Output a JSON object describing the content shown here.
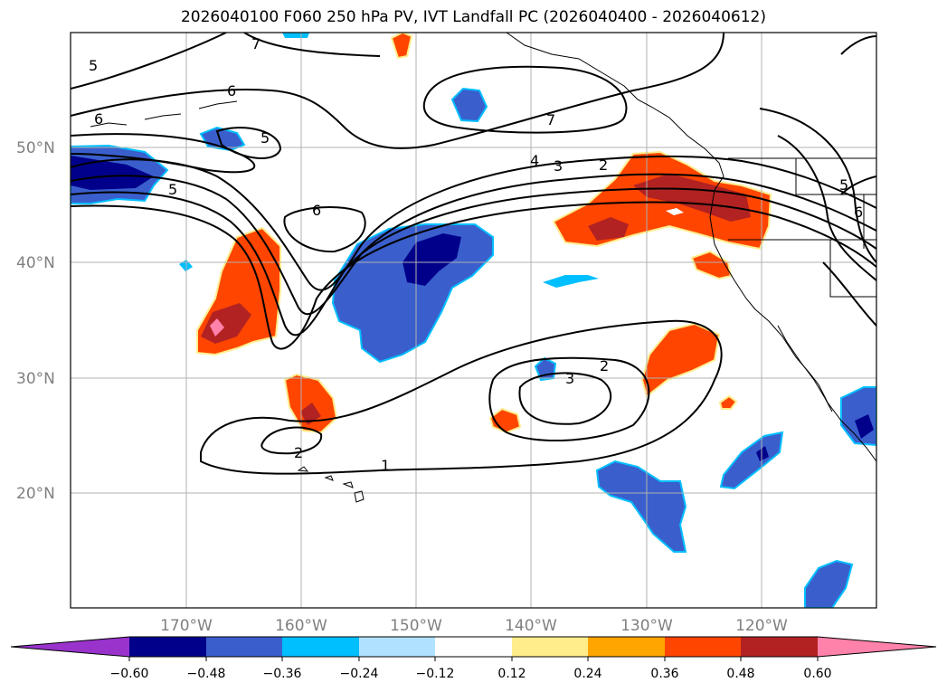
{
  "title": "2026040100 F060 250 hPa PV, IVT Landfall PC (2026040400 - 2026040612)",
  "map": {
    "lat_range": [
      10,
      60
    ],
    "lon_range": [
      -180,
      -110
    ],
    "lat_labels": [
      "50°N",
      "40°N",
      "30°N",
      "20°N"
    ],
    "lon_labels": [
      "170°W",
      "160°W",
      "150°W",
      "140°W",
      "130°W",
      "120°W"
    ],
    "grid": true
  },
  "contour_labels": [
    "5",
    "6",
    "7",
    "5",
    "6",
    "7",
    "4",
    "3",
    "2",
    "5",
    "6",
    "5",
    "6",
    "2",
    "3",
    "2",
    "1"
  ],
  "colorbar": {
    "ticks": [
      "−0.60",
      "−0.48",
      "−0.36",
      "−0.24",
      "−0.12",
      "0.12",
      "0.24",
      "0.36",
      "0.48",
      "0.60"
    ],
    "colors": [
      "#9933cc",
      "#00008b",
      "#3a5fcd",
      "#00bfff",
      "#b0e2ff",
      "#ffffff",
      "#ffec8b",
      "#ffa500",
      "#ff4500",
      "#b22222",
      "#ff82ab"
    ]
  }
}
